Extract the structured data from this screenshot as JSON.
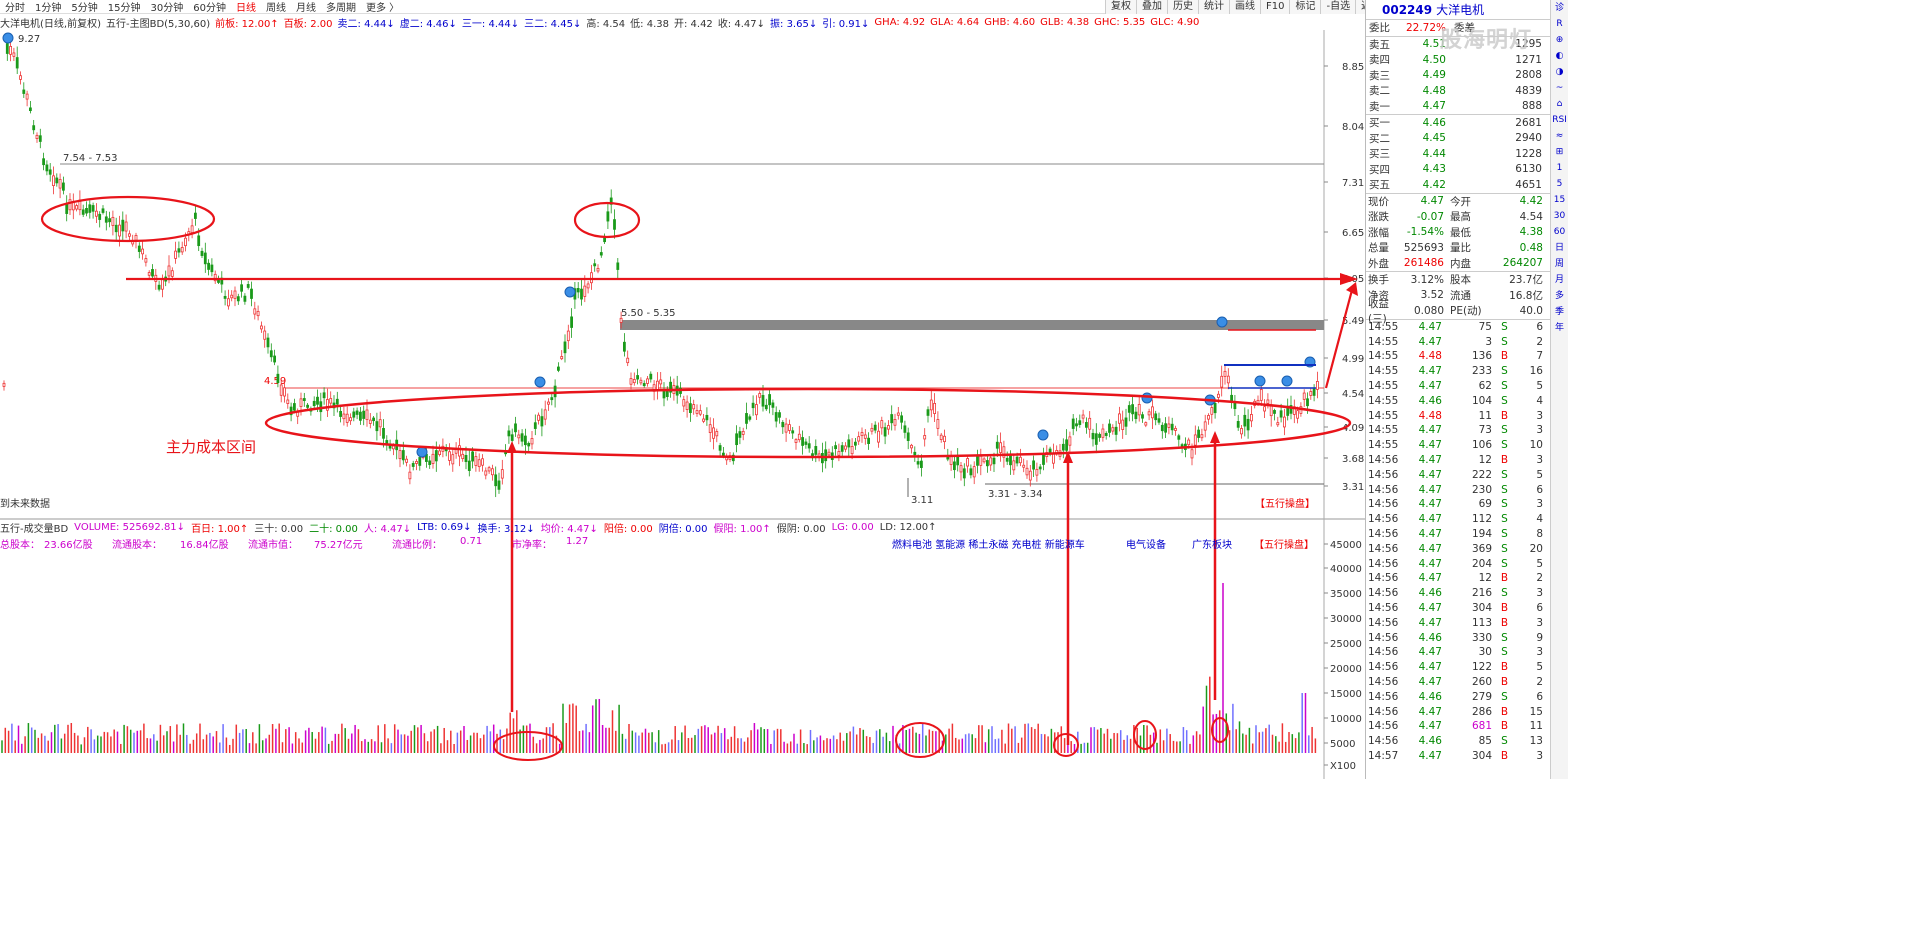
{
  "periods": [
    "分时",
    "1分钟",
    "5分钟",
    "15分钟",
    "30分钟",
    "60分钟",
    "日线",
    "周线",
    "月线",
    "多周期",
    "更多 〉"
  ],
  "active_period": "日线",
  "toolbar": [
    "复权",
    "叠加",
    "历史",
    "统计",
    "画线",
    "F10",
    "标记",
    "-自选",
    "返回"
  ],
  "info": {
    "name": "大洋电机(日线,前复权)",
    "indicator": "五行-主图BD(5,30,60)",
    "items": [
      {
        "t": "前板: 12.00↑",
        "c": "r"
      },
      {
        "t": "百板: 2.00",
        "c": "r"
      },
      {
        "t": "卖二: 4.44↓",
        "c": "b"
      },
      {
        "t": "虚二: 4.46↓",
        "c": "b"
      },
      {
        "t": "三一: 4.44↓",
        "c": "b"
      },
      {
        "t": "三二: 4.45↓",
        "c": "b"
      },
      {
        "t": "高: 4.54",
        "c": "bk"
      },
      {
        "t": "低: 4.38",
        "c": "bk"
      },
      {
        "t": "开: 4.42",
        "c": "bk"
      },
      {
        "t": "收: 4.47↓",
        "c": "bk"
      },
      {
        "t": "振: 3.65↓",
        "c": "b"
      },
      {
        "t": "引: 0.91↓",
        "c": "b"
      }
    ],
    "right_items": [
      "GHA: 4.92",
      "GLA: 4.64",
      "GHB: 4.60",
      "GLB: 4.38",
      "GHC: 5.35",
      "GLC: 4.90"
    ]
  },
  "chart_labels": {
    "high": "9.27",
    "level1": "7.54 - 7.53",
    "level2": "5.50 - 5.35",
    "level3": "4.59",
    "low1": "3.11",
    "low2": "3.31 - 3.34",
    "annotation": "主力成本区间",
    "future": "到未来数据",
    "wuxing": "【五行操盘】"
  },
  "price_axis": [
    "8.85",
    "8.04",
    "7.31",
    "6.65",
    "6.05",
    "5.49",
    "4.99",
    "4.54",
    "4.09",
    "3.68",
    "3.31"
  ],
  "vol_axis": [
    "45000",
    "40000",
    "35000",
    "30000",
    "25000",
    "20000",
    "15000",
    "10000",
    "5000",
    "X100"
  ],
  "volume_bar": {
    "title": "五行-成交量BD",
    "items": [
      {
        "t": "VOLUME: 525692.81↓",
        "c": "m"
      },
      {
        "t": "百日: 1.00↑",
        "c": "r"
      },
      {
        "t": "三十: 0.00",
        "c": "bk"
      },
      {
        "t": "二十: 0.00",
        "c": "g"
      },
      {
        "t": "人: 4.47↓",
        "c": "m"
      },
      {
        "t": "LTB: 0.69↓",
        "c": "b"
      },
      {
        "t": "换手: 3.12↓",
        "c": "b"
      },
      {
        "t": "均价: 4.47↓",
        "c": "m"
      },
      {
        "t": "阳倍: 0.00",
        "c": "r"
      },
      {
        "t": "阴倍: 0.00",
        "c": "b"
      },
      {
        "t": "假阳: 1.00↑",
        "c": "m"
      },
      {
        "t": "假阴: 0.00",
        "c": "bk"
      },
      {
        "t": "LG: 0.00",
        "c": "m"
      },
      {
        "t": "LD: 12.00↑",
        "c": "bk"
      }
    ]
  },
  "cap_info": {
    "zgb_label": "总股本：",
    "zgb": "23.66亿股",
    "ltgb_label": "流通股本：",
    "ltgb": "16.84亿股",
    "ltsz_label": "流通市值：",
    "ltsz": "75.27亿元",
    "ltbl_label": "流通比例：",
    "ltbl": "0.71",
    "sjl_label": "市净率：",
    "sjl": "1.27",
    "tags": "燃料电池 氢能源 稀土永磁 充电桩 新能源车",
    "sector": "电气设备",
    "region": "广东板块",
    "wuxing": "【五行操盘】"
  },
  "quote": {
    "code": "002249",
    "name": "大洋电机",
    "weibi_label": "委比",
    "weibi": "22.72%",
    "weicha_label": "委差",
    "sells": [
      {
        "l": "卖五",
        "p": "4.51",
        "v": "1295"
      },
      {
        "l": "卖四",
        "p": "4.50",
        "v": "1271"
      },
      {
        "l": "卖三",
        "p": "4.49",
        "v": "2808"
      },
      {
        "l": "卖二",
        "p": "4.48",
        "v": "4839"
      },
      {
        "l": "卖一",
        "p": "4.47",
        "v": "888"
      }
    ],
    "buys": [
      {
        "l": "买一",
        "p": "4.46",
        "v": "2681"
      },
      {
        "l": "买二",
        "p": "4.45",
        "v": "2940"
      },
      {
        "l": "买三",
        "p": "4.44",
        "v": "1228"
      },
      {
        "l": "买四",
        "p": "4.43",
        "v": "6130"
      },
      {
        "l": "买五",
        "p": "4.42",
        "v": "4651"
      }
    ],
    "stats": [
      {
        "a": "现价",
        "b": "4.47",
        "bc": "g",
        "c": "今开",
        "d": "4.42",
        "dc": "g"
      },
      {
        "a": "涨跌",
        "b": "-0.07",
        "bc": "g",
        "c": "最高",
        "d": "4.54",
        "dc": "bk"
      },
      {
        "a": "涨幅",
        "b": "-1.54%",
        "bc": "g",
        "c": "最低",
        "d": "4.38",
        "dc": "g"
      },
      {
        "a": "总量",
        "b": "525693",
        "bc": "bk",
        "c": "量比",
        "d": "0.48",
        "dc": "g"
      },
      {
        "a": "外盘",
        "b": "261486",
        "bc": "r",
        "c": "内盘",
        "d": "264207",
        "dc": "g"
      }
    ],
    "stats2": [
      {
        "a": "换手",
        "b": "3.12%",
        "c": "股本",
        "d": "23.7亿"
      },
      {
        "a": "净资",
        "b": "3.52",
        "c": "流通",
        "d": "16.8亿"
      },
      {
        "a": "收益(三)",
        "b": "0.080",
        "c": "PE(动)",
        "d": "40.0"
      }
    ],
    "ticks": [
      {
        "t": "14:55",
        "p": "4.47",
        "v": "75",
        "bs": "S",
        "n": "6"
      },
      {
        "t": "14:55",
        "p": "4.47",
        "v": "3",
        "bs": "S",
        "n": "2"
      },
      {
        "t": "14:55",
        "p": "4.48",
        "v": "136",
        "bs": "B",
        "n": "7"
      },
      {
        "t": "14:55",
        "p": "4.47",
        "v": "233",
        "bs": "S",
        "n": "16"
      },
      {
        "t": "14:55",
        "p": "4.47",
        "v": "62",
        "bs": "S",
        "n": "5"
      },
      {
        "t": "14:55",
        "p": "4.46",
        "v": "104",
        "bs": "S",
        "n": "4"
      },
      {
        "t": "14:55",
        "p": "4.48",
        "v": "11",
        "bs": "B",
        "n": "3"
      },
      {
        "t": "14:55",
        "p": "4.47",
        "v": "73",
        "bs": "S",
        "n": "3"
      },
      {
        "t": "14:55",
        "p": "4.47",
        "v": "106",
        "bs": "S",
        "n": "10"
      },
      {
        "t": "14:56",
        "p": "4.47",
        "v": "12",
        "bs": "B",
        "n": "3"
      },
      {
        "t": "14:56",
        "p": "4.47",
        "v": "222",
        "bs": "S",
        "n": "5"
      },
      {
        "t": "14:56",
        "p": "4.47",
        "v": "230",
        "bs": "S",
        "n": "6"
      },
      {
        "t": "14:56",
        "p": "4.47",
        "v": "69",
        "bs": "S",
        "n": "3"
      },
      {
        "t": "14:56",
        "p": "4.47",
        "v": "112",
        "bs": "S",
        "n": "4"
      },
      {
        "t": "14:56",
        "p": "4.47",
        "v": "194",
        "bs": "S",
        "n": "8"
      },
      {
        "t": "14:56",
        "p": "4.47",
        "v": "369",
        "bs": "S",
        "n": "20"
      },
      {
        "t": "14:56",
        "p": "4.47",
        "v": "204",
        "bs": "S",
        "n": "5"
      },
      {
        "t": "14:56",
        "p": "4.47",
        "v": "12",
        "bs": "B",
        "n": "2"
      },
      {
        "t": "14:56",
        "p": "4.46",
        "v": "216",
        "bs": "S",
        "n": "3"
      },
      {
        "t": "14:56",
        "p": "4.47",
        "v": "304",
        "bs": "B",
        "n": "6"
      },
      {
        "t": "14:56",
        "p": "4.47",
        "v": "113",
        "bs": "B",
        "n": "3"
      },
      {
        "t": "14:56",
        "p": "4.46",
        "v": "330",
        "bs": "S",
        "n": "9"
      },
      {
        "t": "14:56",
        "p": "4.47",
        "v": "30",
        "bs": "S",
        "n": "3"
      },
      {
        "t": "14:56",
        "p": "4.47",
        "v": "122",
        "bs": "B",
        "n": "5"
      },
      {
        "t": "14:56",
        "p": "4.47",
        "v": "260",
        "bs": "B",
        "n": "2"
      },
      {
        "t": "14:56",
        "p": "4.46",
        "v": "279",
        "bs": "S",
        "n": "6"
      },
      {
        "t": "14:56",
        "p": "4.47",
        "v": "286",
        "bs": "B",
        "n": "15"
      },
      {
        "t": "14:56",
        "p": "4.47",
        "v": "681",
        "bs": "B",
        "n": "11"
      },
      {
        "t": "14:56",
        "p": "4.46",
        "v": "85",
        "bs": "S",
        "n": "13"
      },
      {
        "t": "14:57",
        "p": "4.47",
        "v": "304",
        "bs": "B",
        "n": "3"
      }
    ]
  },
  "sidebar": [
    "诊",
    "R",
    "⊕",
    "◐",
    "◑",
    "~",
    "⌂",
    "RSI",
    "≈",
    "⊞",
    "1",
    "5",
    "15",
    "30",
    "60",
    "日",
    "周",
    "月",
    "多",
    "季",
    "年"
  ],
  "watermark": "股海明灯"
}
